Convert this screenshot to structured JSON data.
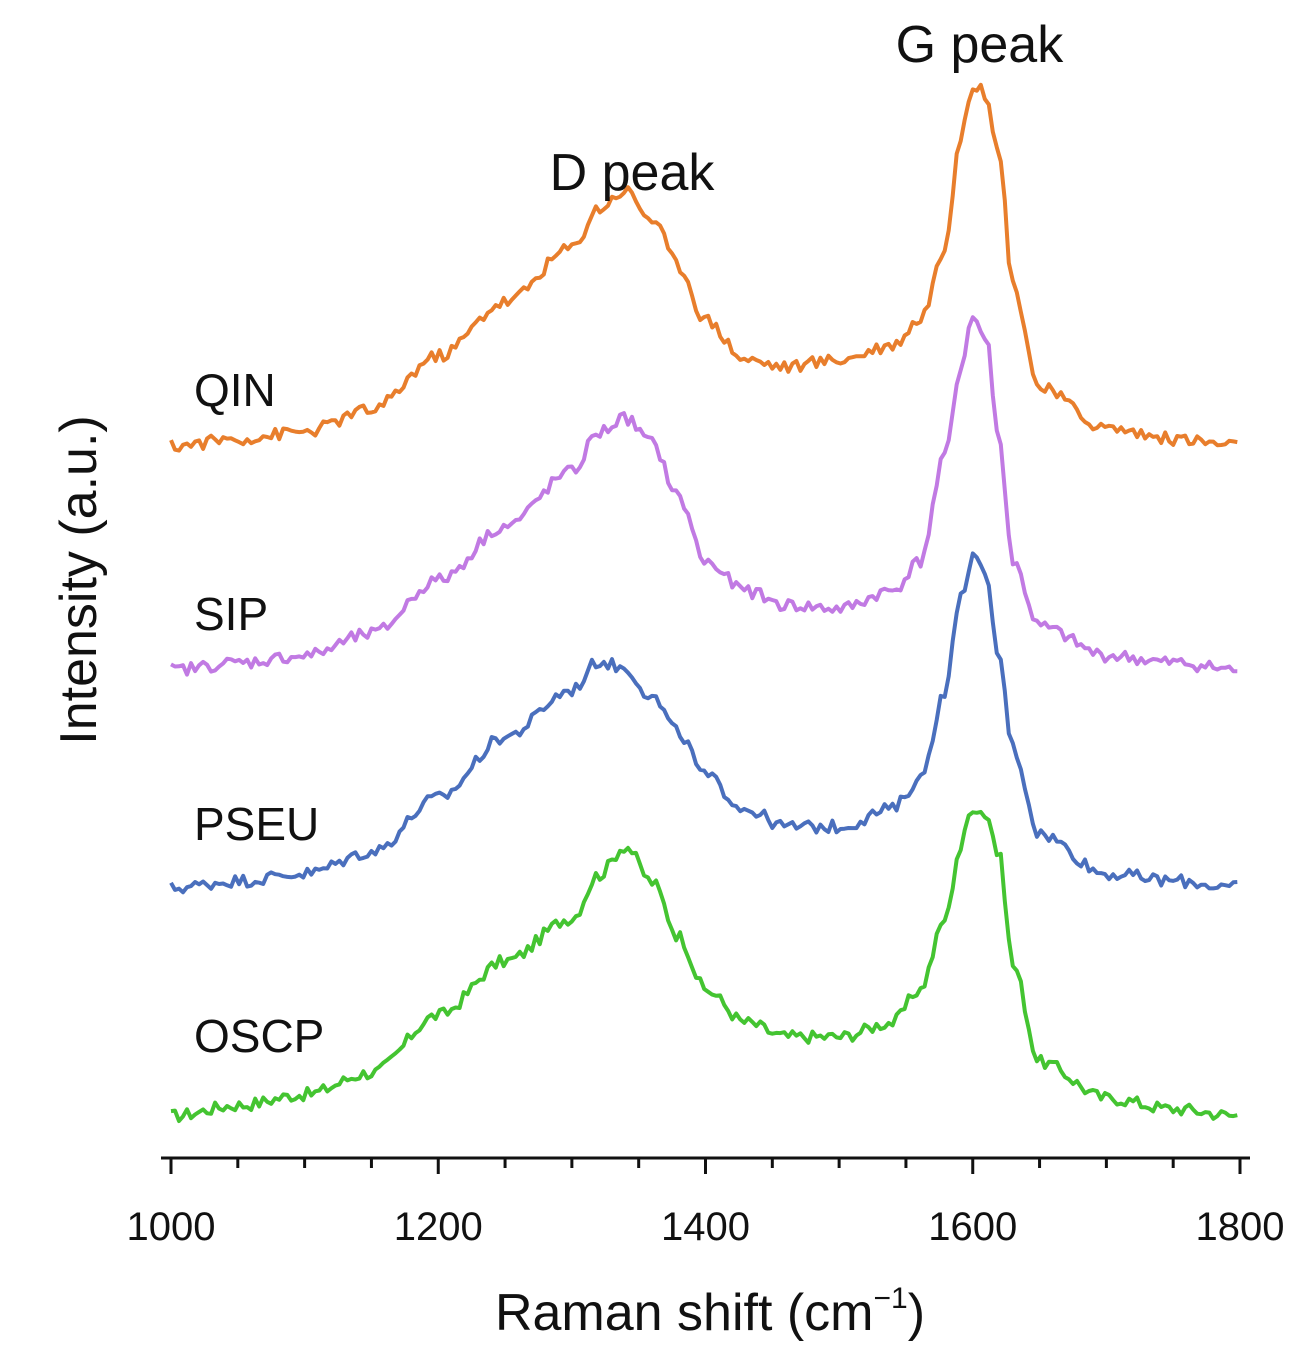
{
  "chart_data": {
    "type": "line",
    "title": "",
    "xlabel": "Raman shift (cm",
    "xlabel_exponent": "−1",
    "xlabel_close": ")",
    "ylabel": "Intensity (a.u.)",
    "xlim": [
      1000,
      1800
    ],
    "xticks": [
      1000,
      1200,
      1400,
      1600,
      1800
    ],
    "xtick_labels": [
      "1000",
      "1200",
      "1400",
      "1600",
      "1800"
    ],
    "grid": false,
    "y_axis_ticks": false,
    "annotations": [
      {
        "text": "D peak",
        "x": 1345,
        "series": "QIN"
      },
      {
        "text": "G peak",
        "x": 1605,
        "series": "QIN"
      }
    ],
    "x": [
      1000,
      1050,
      1100,
      1150,
      1200,
      1250,
      1300,
      1320,
      1340,
      1360,
      1380,
      1400,
      1430,
      1460,
      1500,
      1540,
      1560,
      1580,
      1590,
      1600,
      1610,
      1620,
      1630,
      1650,
      1700,
      1750,
      1800
    ],
    "series": [
      {
        "name": "OSCP",
        "color": "#44c431",
        "offset": 0,
        "values": [
          0.0,
          0.03,
          0.06,
          0.12,
          0.28,
          0.43,
          0.55,
          0.67,
          0.75,
          0.65,
          0.5,
          0.35,
          0.26,
          0.22,
          0.22,
          0.26,
          0.35,
          0.55,
          0.74,
          0.86,
          0.84,
          0.72,
          0.42,
          0.15,
          0.05,
          0.02,
          0.0
        ]
      },
      {
        "name": "PSEU",
        "color": "#4a6fbd",
        "offset": 1,
        "values": [
          0.0,
          0.02,
          0.04,
          0.1,
          0.25,
          0.42,
          0.55,
          0.63,
          0.61,
          0.53,
          0.43,
          0.31,
          0.22,
          0.17,
          0.17,
          0.22,
          0.3,
          0.55,
          0.8,
          0.92,
          0.86,
          0.63,
          0.39,
          0.15,
          0.04,
          0.02,
          0.0
        ]
      },
      {
        "name": "SIP",
        "color": "#c17ae3",
        "offset": 2,
        "values": [
          0.0,
          0.02,
          0.04,
          0.1,
          0.25,
          0.4,
          0.55,
          0.66,
          0.7,
          0.63,
          0.48,
          0.3,
          0.22,
          0.18,
          0.17,
          0.22,
          0.3,
          0.6,
          0.83,
          0.98,
          0.92,
          0.63,
          0.3,
          0.12,
          0.04,
          0.02,
          0.0
        ]
      },
      {
        "name": "QIN",
        "color": "#e87e2c",
        "offset": 3,
        "values": [
          0.0,
          0.02,
          0.04,
          0.1,
          0.25,
          0.4,
          0.55,
          0.66,
          0.71,
          0.63,
          0.5,
          0.35,
          0.24,
          0.22,
          0.24,
          0.28,
          0.35,
          0.55,
          0.86,
          1.0,
          0.98,
          0.8,
          0.45,
          0.16,
          0.05,
          0.02,
          0.0
        ]
      }
    ]
  }
}
